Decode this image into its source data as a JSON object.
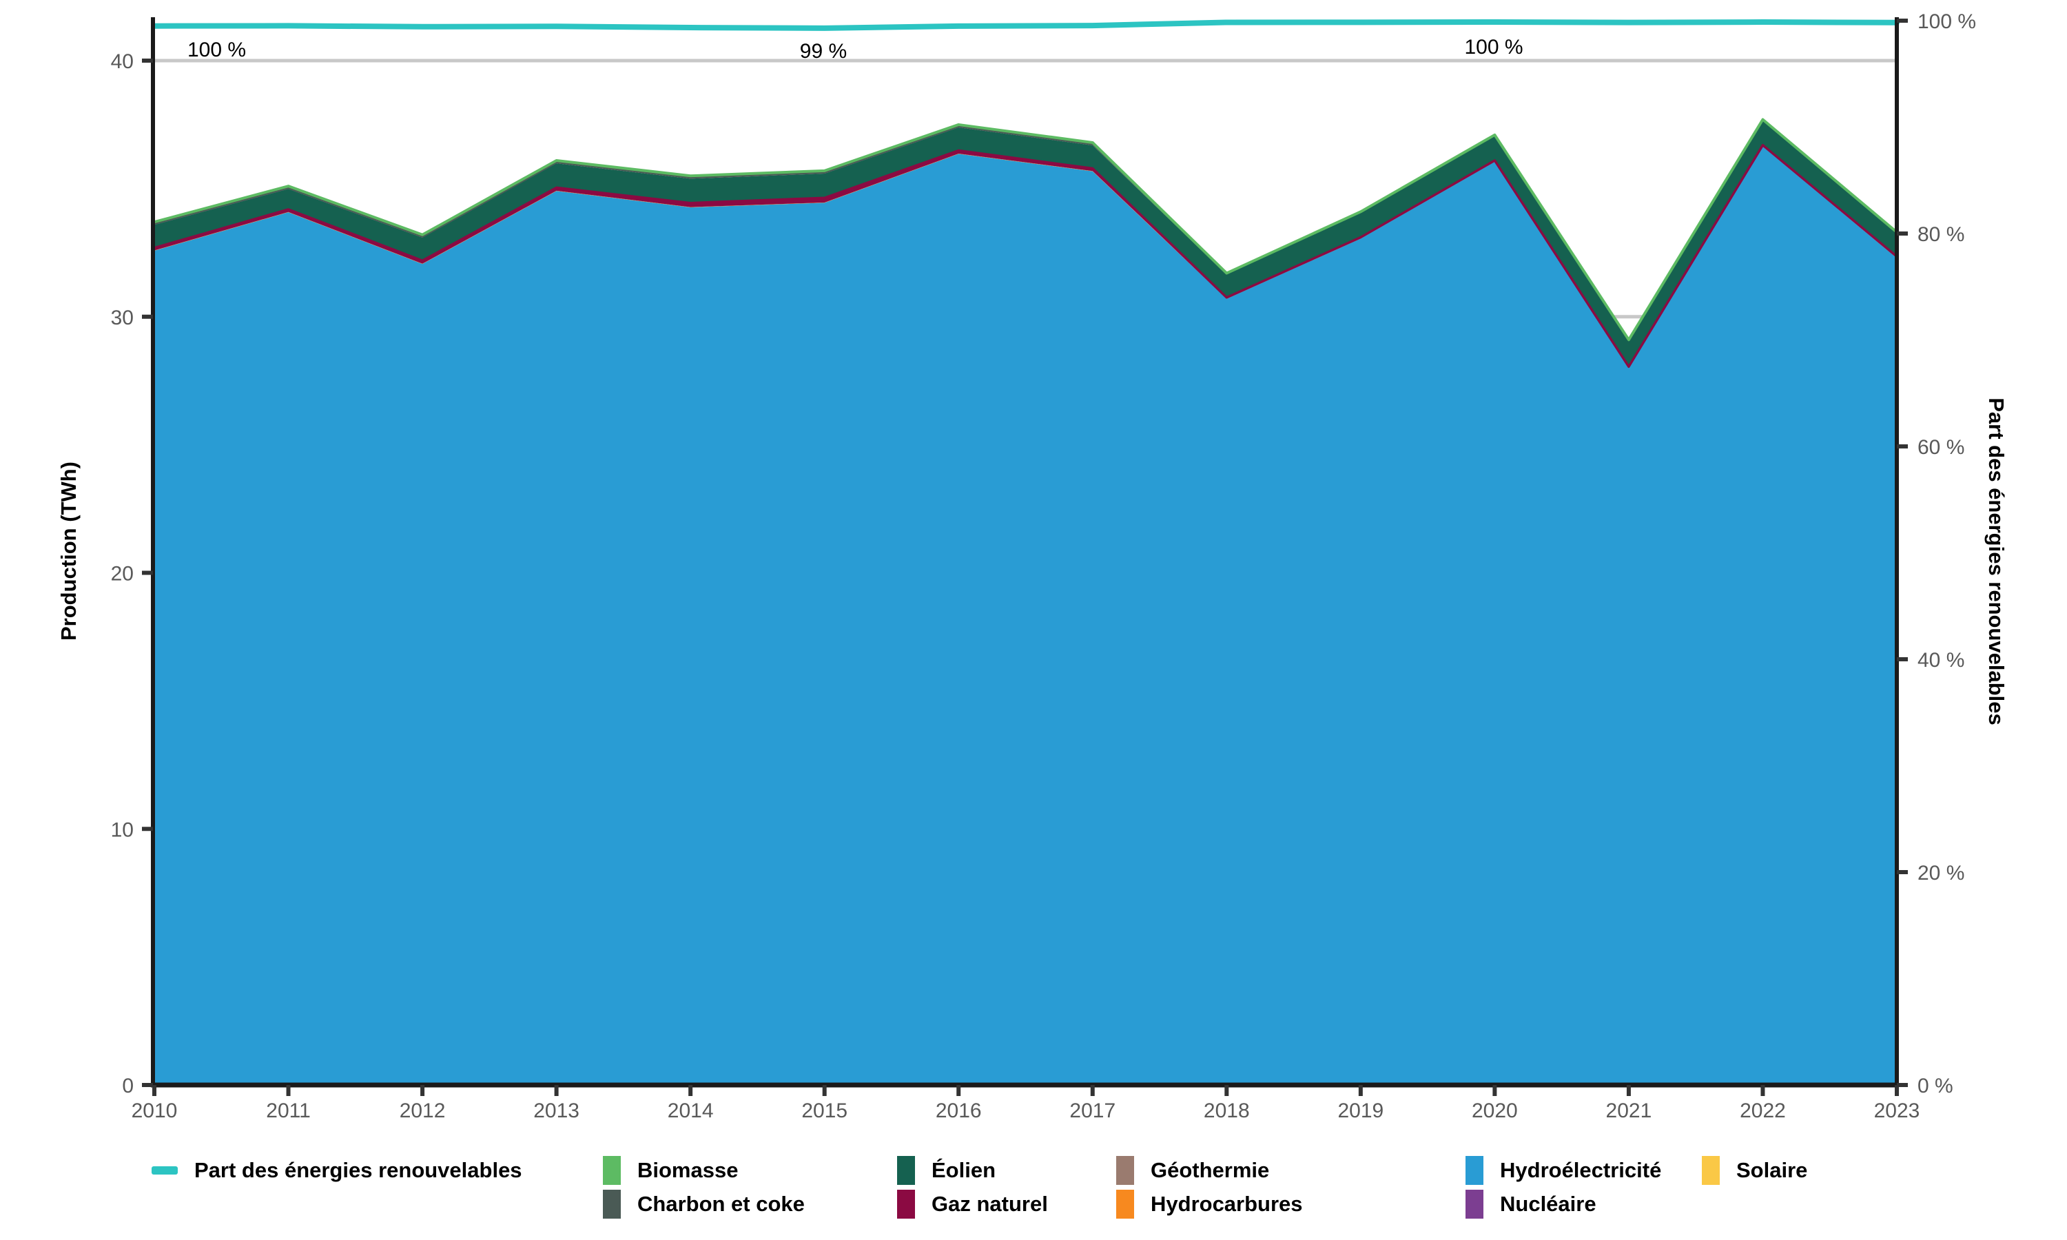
{
  "chart_data": {
    "type": "area",
    "title": "",
    "x": [
      2010,
      2011,
      2012,
      2013,
      2014,
      2015,
      2016,
      2017,
      2018,
      2019,
      2020,
      2021,
      2022,
      2023
    ],
    "stack_order": [
      "hydroelectricite",
      "hydrocarbures",
      "gaz_naturel",
      "eolien",
      "charbon",
      "biomasse"
    ],
    "series": [
      {
        "key": "biomasse",
        "name": "Biomasse",
        "color": "#5DBB63",
        "values": [
          0.05,
          0.05,
          0.05,
          0.05,
          0.05,
          0.05,
          0.05,
          0.05,
          0.05,
          0.05,
          0.05,
          0.05,
          0.05,
          0.05
        ]
      },
      {
        "key": "charbon",
        "name": "Charbon et coke",
        "color": "#4A5A55",
        "values": [
          0.06,
          0.06,
          0.06,
          0.06,
          0.06,
          0.06,
          0.06,
          0.06,
          0,
          0,
          0,
          0,
          0,
          0
        ]
      },
      {
        "key": "eolien",
        "name": "Éolien",
        "color": "#156150",
        "values": [
          0.9,
          0.8,
          0.9,
          0.95,
          0.95,
          0.95,
          0.9,
          0.9,
          0.9,
          0.95,
          0.95,
          1.0,
          0.95,
          0.9
        ]
      },
      {
        "key": "gaz_naturel",
        "name": "Gaz naturel",
        "color": "#8B0A42",
        "values": [
          0.1,
          0.1,
          0.12,
          0.12,
          0.16,
          0.18,
          0.12,
          0.1,
          0.04,
          0.04,
          0.04,
          0.04,
          0.04,
          0.05
        ]
      },
      {
        "key": "geothermie",
        "name": "Géothermie",
        "color": "#9A7B6F",
        "values": [
          0,
          0,
          0,
          0,
          0,
          0,
          0,
          0,
          0,
          0,
          0,
          0,
          0,
          0
        ]
      },
      {
        "key": "hydrocarbures",
        "name": "Hydrocarbures",
        "color": "#F7891F",
        "values": [
          0.01,
          0.01,
          0.01,
          0.01,
          0.01,
          0.01,
          0.01,
          0.01,
          0.01,
          0.01,
          0.01,
          0.01,
          0.01,
          0.01
        ]
      },
      {
        "key": "hydroelectricite",
        "name": "Hydroélectricité",
        "color": "#299CD4",
        "values": [
          32.58,
          34.08,
          32.06,
          34.91,
          34.27,
          34.45,
          36.36,
          35.68,
          30.7,
          33.05,
          36.05,
          28.0,
          36.65,
          32.29
        ]
      },
      {
        "key": "nucleaire",
        "name": "Nucléaire",
        "color": "#7C3E91",
        "values": [
          0,
          0,
          0,
          0,
          0,
          0,
          0,
          0,
          0,
          0,
          0,
          0,
          0,
          0
        ]
      },
      {
        "key": "solaire",
        "name": "Solaire",
        "color": "#FAC846",
        "values": [
          0,
          0,
          0,
          0,
          0,
          0,
          0,
          0,
          0,
          0,
          0,
          0,
          0,
          0
        ]
      }
    ],
    "line": {
      "key": "part_renouvelables",
      "name": "Part des énergies renouvelables",
      "color": "#2CC4C2",
      "values": [
        99.5,
        99.52,
        99.43,
        99.47,
        99.35,
        99.3,
        99.49,
        99.54,
        99.84,
        99.85,
        99.87,
        99.83,
        99.87,
        99.82
      ]
    },
    "annotations": [
      {
        "text": "100 %",
        "x": 272,
        "baseline_y": 84,
        "anchor": "start"
      },
      {
        "text": "99 %",
        "x": 1195,
        "baseline_y": 86,
        "anchor": "middle"
      },
      {
        "text": "100 %",
        "x": 2168,
        "baseline_y": 80,
        "anchor": "middle"
      }
    ],
    "left_axis": {
      "title": "Production (TWh)",
      "tick_values": [
        0,
        10,
        20,
        30,
        40
      ],
      "tick_labels": [
        "0",
        "10",
        "20",
        "30",
        "40"
      ],
      "range": [
        0,
        40
      ]
    },
    "right_axis": {
      "title": "Part des énergies renouvelables",
      "tick_values": [
        0,
        20,
        40,
        60,
        80,
        100
      ],
      "tick_labels": [
        "0 %",
        "20 %",
        "40 %",
        "60 %",
        "80 %",
        "100 %"
      ],
      "range": [
        0,
        100
      ]
    },
    "x_axis": {
      "tick_labels": [
        "2010",
        "2011",
        "2012",
        "2013",
        "2014",
        "2015",
        "2016",
        "2017",
        "2018",
        "2019",
        "2020",
        "2021",
        "2022",
        "2023"
      ]
    },
    "grid": {
      "on": true,
      "color": "#C8C8C8",
      "y_values": [
        10,
        20,
        30,
        40
      ]
    },
    "legend_position": "bottom"
  },
  "legend": {
    "items": [
      {
        "key": "part_renouvelables",
        "label": "Part des énergies renouvelables",
        "type": "line",
        "color": "#2CC4C2",
        "row": 1,
        "col": 1
      },
      {
        "key": "biomasse",
        "label": "Biomasse",
        "type": "box",
        "color": "#5DBB63",
        "row": 1,
        "col": 2
      },
      {
        "key": "charbon",
        "label": "Charbon et coke",
        "type": "box",
        "color": "#4A5A55",
        "row": 2,
        "col": 2
      },
      {
        "key": "eolien",
        "label": "Éolien",
        "type": "box",
        "color": "#156150",
        "row": 1,
        "col": 3
      },
      {
        "key": "gaz_naturel",
        "label": "Gaz naturel",
        "type": "box",
        "color": "#8B0A42",
        "row": 2,
        "col": 3
      },
      {
        "key": "geothermie",
        "label": "Géothermie",
        "type": "box",
        "color": "#9A7B6F",
        "row": 1,
        "col": 4
      },
      {
        "key": "hydrocarbures",
        "label": "Hydrocarbures",
        "type": "box",
        "color": "#F7891F",
        "row": 2,
        "col": 4
      },
      {
        "key": "hydroelectricite",
        "label": "Hydroélectricité",
        "type": "box",
        "color": "#299CD4",
        "row": 1,
        "col": 5
      },
      {
        "key": "nucleaire",
        "label": "Nucléaire",
        "type": "box",
        "color": "#7C3E91",
        "row": 2,
        "col": 5
      },
      {
        "key": "solaire",
        "label": "Solaire",
        "type": "box",
        "color": "#FAC846",
        "row": 1,
        "col": 6
      }
    ]
  },
  "style": {
    "axis_color": "#1A1A1A",
    "tick_label_color": "#595959",
    "annotation_color": "#000000"
  }
}
